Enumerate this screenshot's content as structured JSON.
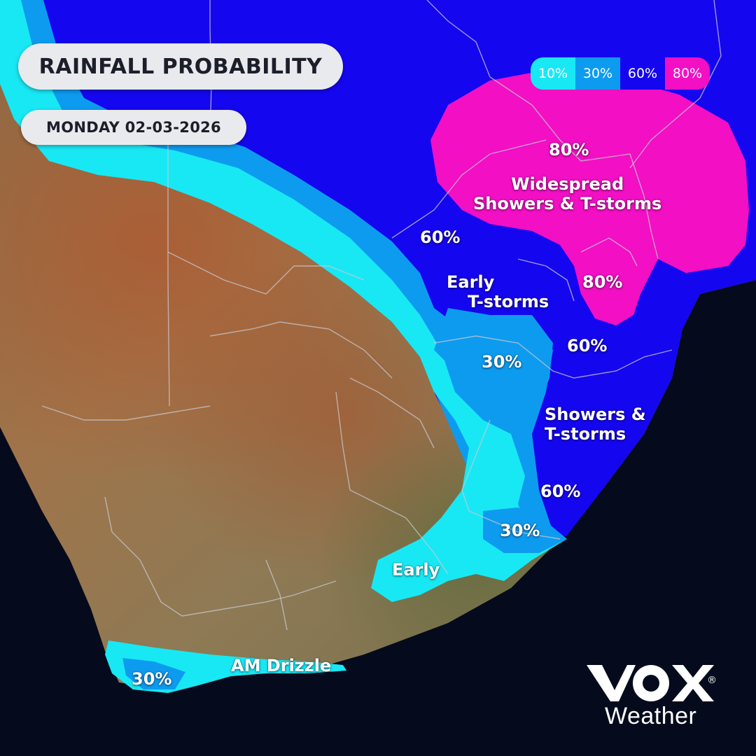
{
  "map": {
    "title": "RAINFALL PROBABILITY",
    "date": "MONDAY 02-03-2026"
  },
  "legend": [
    {
      "label": "10%",
      "color": "#18e8f4"
    },
    {
      "label": "30%",
      "color": "#0d9bf0"
    },
    {
      "label": "60%",
      "color": "#1506f0"
    },
    {
      "label": "80%",
      "color": "#f20fc4"
    }
  ],
  "colors": {
    "ocean": "#050b1c",
    "land": "#9c7a4c",
    "prob_10": "#18e8f4",
    "prob_30": "#0d9bf0",
    "prob_60": "#1506f0",
    "prob_80": "#f20fc4",
    "title_box": "#e9eaee"
  },
  "labels": {
    "p80_north": "80%",
    "widespread_l1": "Widespread",
    "widespread_l2": "Showers & T-storms",
    "p60_west": "60%",
    "early_tstorms_l1": "Early",
    "early_tstorms_l2": "T-storms",
    "p80_east": "80%",
    "p60_mid": "60%",
    "p30_mid": "30%",
    "showers_l1": "Showers &",
    "showers_l2": "T-storms",
    "p60_south": "60%",
    "p30_south": "30%",
    "early": "Early",
    "am_drizzle": "AM Drizzle",
    "p30_cape": "30%"
  },
  "logo": {
    "brand": "vox",
    "word": "Weather",
    "registered": "®"
  }
}
